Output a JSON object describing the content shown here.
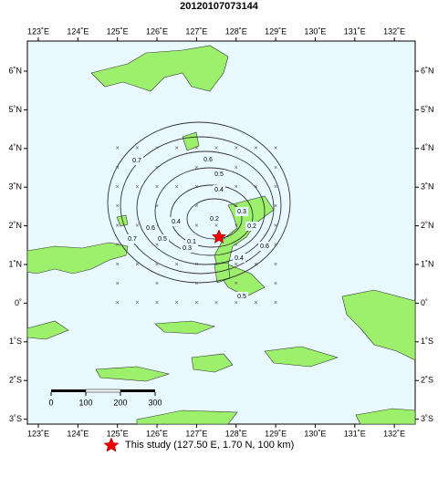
{
  "map": {
    "title": "20120107073144",
    "lon_ticks": [
      {
        "value": 123,
        "label": "123˚E"
      },
      {
        "value": 124,
        "label": "124˚E"
      },
      {
        "value": 125,
        "label": "125˚E"
      },
      {
        "value": 126,
        "label": "126˚E"
      },
      {
        "value": 127,
        "label": "127˚E"
      },
      {
        "value": 128,
        "label": "128˚E"
      },
      {
        "value": 129,
        "label": "129˚E"
      },
      {
        "value": 130,
        "label": "130˚E"
      },
      {
        "value": 131,
        "label": "131˚E"
      },
      {
        "value": 132,
        "label": "132˚E"
      }
    ],
    "lat_ticks": [
      {
        "value": 6,
        "label": "6˚N"
      },
      {
        "value": 5,
        "label": "5˚N"
      },
      {
        "value": 4,
        "label": "4˚N"
      },
      {
        "value": 3,
        "label": "3˚N"
      },
      {
        "value": 2,
        "label": "2˚N"
      },
      {
        "value": 1,
        "label": "1˚N"
      },
      {
        "value": 0,
        "label": "0˚"
      },
      {
        "value": -1,
        "label": "1˚S"
      },
      {
        "value": -2,
        "label": "2˚S"
      },
      {
        "value": -3,
        "label": "3˚S"
      }
    ],
    "scale_bar": [
      0,
      100,
      200,
      300
    ],
    "contour_labels": [
      "0.7",
      "0.6",
      "0.5",
      "0.4",
      "0.3",
      "0.2",
      "0.2",
      "0.1",
      "0.7",
      "0.6",
      "0.5",
      "0.4",
      "0.3",
      "0.4",
      "0.6",
      "0.5"
    ],
    "legend": "This study (127.50 E, 1.70 N, 100 km)"
  }
}
